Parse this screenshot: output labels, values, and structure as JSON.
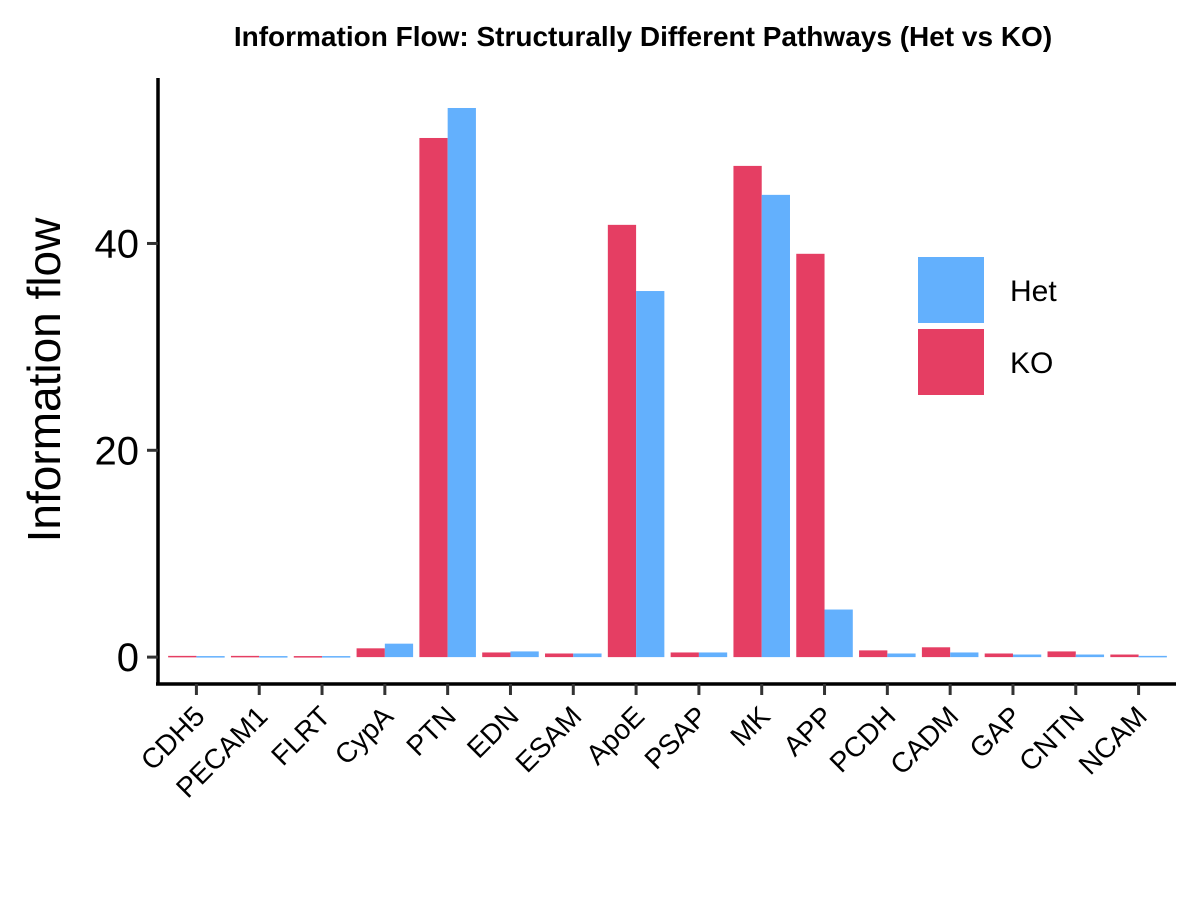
{
  "chart_data": {
    "type": "bar",
    "title": "Information Flow: Structurally Different Pathways (Het vs KO)",
    "xlabel": "",
    "ylabel": "Information flow",
    "ylim": [
      -2.6,
      56
    ],
    "yticks": [
      0,
      20,
      40
    ],
    "grid": false,
    "legend_position": "right",
    "categories": [
      "CDH5",
      "PECAM1",
      "FLRT",
      "CypA",
      "PTN",
      "EDN",
      "ESAM",
      "ApoE",
      "PSAP",
      "MK",
      "APP",
      "PCDH",
      "CADM",
      "GAP",
      "CNTN",
      "NCAM"
    ],
    "series": [
      {
        "name": "KO",
        "color": "#e53e63",
        "values": [
          0.12,
          0.12,
          0.1,
          0.85,
          50.2,
          0.45,
          0.35,
          41.8,
          0.45,
          47.5,
          39.0,
          0.65,
          0.95,
          0.35,
          0.55,
          0.25
        ]
      },
      {
        "name": "Het",
        "color": "#63b0fd",
        "values": [
          0.1,
          0.1,
          0.1,
          1.3,
          53.1,
          0.55,
          0.35,
          35.4,
          0.45,
          44.7,
          4.6,
          0.35,
          0.45,
          0.25,
          0.25,
          0.12
        ]
      }
    ],
    "legend": [
      {
        "name": "Het",
        "color": "#63b0fd"
      },
      {
        "name": "KO",
        "color": "#e53e63"
      }
    ]
  }
}
